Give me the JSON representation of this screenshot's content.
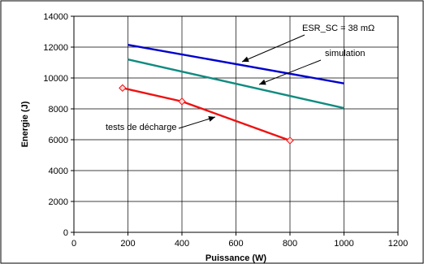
{
  "chart_data": {
    "type": "line",
    "xlabel": "Puissance (W)",
    "ylabel": "Energie (J)",
    "xlim": [
      0,
      1200
    ],
    "ylim": [
      0,
      14000
    ],
    "x_ticks": [
      0,
      200,
      400,
      600,
      800,
      1000,
      1200
    ],
    "y_ticks": [
      0,
      2000,
      4000,
      6000,
      8000,
      10000,
      12000,
      14000
    ],
    "grid": true,
    "series": [
      {
        "name": "ESR_SC = 38 mΩ",
        "color": "#0000cc",
        "marker": "none",
        "x": [
          200,
          1000
        ],
        "y": [
          12150,
          9650
        ]
      },
      {
        "name": "simulation",
        "color": "#108b80",
        "marker": "none",
        "x": [
          200,
          1000
        ],
        "y": [
          11200,
          8050
        ]
      },
      {
        "name": "tests de décharge",
        "color": "#ee1111",
        "marker": "diamond",
        "x": [
          180,
          400,
          800
        ],
        "y": [
          9350,
          8480,
          5950
        ]
      }
    ],
    "annotations": [
      {
        "text": "ESR_SC = 38 mΩ",
        "series": 0
      },
      {
        "text": "simulation",
        "series": 1
      },
      {
        "text": "tests de décharge",
        "series": 2
      }
    ]
  }
}
